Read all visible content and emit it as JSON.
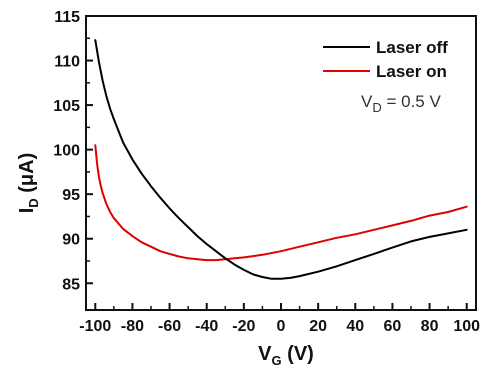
{
  "chart_data": {
    "type": "line",
    "xlabel": {
      "main": "V",
      "sub": "G",
      "unit": " (V)"
    },
    "ylabel": {
      "main": "I",
      "sub": "D",
      "unit": " (μA)"
    },
    "xlim": [
      -105,
      105
    ],
    "ylim": [
      82,
      115
    ],
    "xticks": [
      -100,
      -80,
      -60,
      -40,
      -20,
      0,
      20,
      40,
      60,
      80,
      100
    ],
    "yticks": [
      85,
      90,
      95,
      100,
      105,
      110,
      115
    ],
    "annotation": {
      "main": "V",
      "sub": "D",
      "rest": " = 0.5 V"
    },
    "legend_position": "top-right",
    "series": [
      {
        "name": "Laser off",
        "color": "#000000",
        "x": [
          -100,
          -98,
          -96,
          -94,
          -92,
          -90,
          -85,
          -80,
          -75,
          -70,
          -65,
          -60,
          -55,
          -50,
          -45,
          -40,
          -35,
          -30,
          -25,
          -20,
          -15,
          -10,
          -5,
          0,
          5,
          10,
          20,
          30,
          40,
          50,
          60,
          70,
          80,
          90,
          100
        ],
        "y": [
          112.3,
          109.8,
          107.7,
          106.0,
          104.6,
          103.4,
          100.8,
          98.9,
          97.3,
          95.9,
          94.6,
          93.4,
          92.3,
          91.3,
          90.3,
          89.4,
          88.6,
          87.8,
          87.1,
          86.5,
          86.0,
          85.7,
          85.5,
          85.5,
          85.6,
          85.8,
          86.3,
          86.9,
          87.6,
          88.3,
          89.0,
          89.7,
          90.2,
          90.6,
          91.0
        ]
      },
      {
        "name": "Laser on",
        "color": "#e00000",
        "x": [
          -100,
          -99,
          -98,
          -97,
          -96,
          -94,
          -92,
          -90,
          -85,
          -80,
          -75,
          -70,
          -65,
          -60,
          -55,
          -50,
          -45,
          -40,
          -35,
          -30,
          -25,
          -20,
          -10,
          0,
          10,
          20,
          30,
          40,
          50,
          60,
          70,
          80,
          90,
          100
        ],
        "y": [
          100.5,
          98.4,
          96.9,
          95.9,
          95.1,
          93.9,
          93.0,
          92.3,
          91.1,
          90.3,
          89.6,
          89.1,
          88.6,
          88.3,
          88.0,
          87.8,
          87.7,
          87.6,
          87.6,
          87.7,
          87.8,
          87.9,
          88.2,
          88.6,
          89.1,
          89.6,
          90.1,
          90.5,
          91.0,
          91.5,
          92.0,
          92.6,
          93.0,
          93.6
        ]
      }
    ]
  }
}
